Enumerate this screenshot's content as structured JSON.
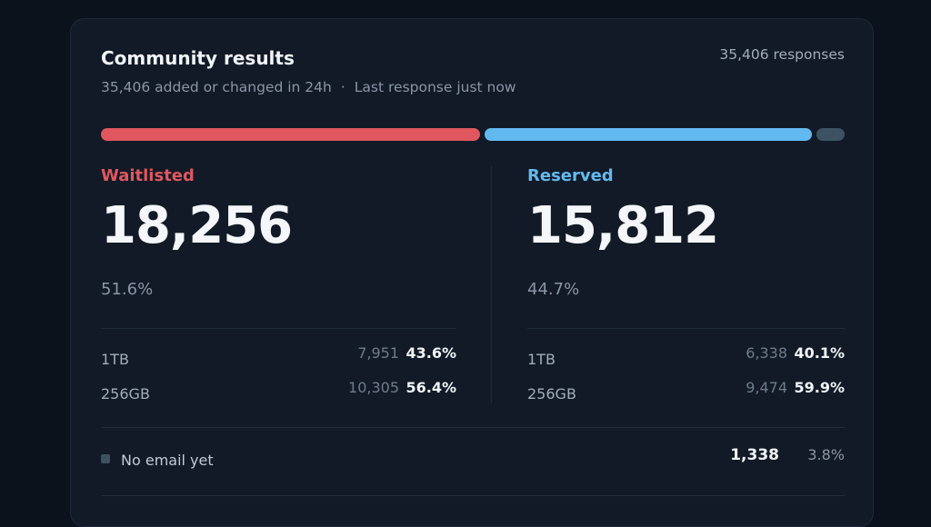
{
  "header": {
    "title": "Community results",
    "subtitle": [
      "35,406 added or changed in 24h",
      "Last response just now"
    ],
    "separator": "·",
    "total": "35,406 responses"
  },
  "groups": [
    {
      "label": "Waitlisted",
      "count": "18,256",
      "share": "51.6%",
      "color": "#e0575f",
      "rows": [
        {
          "name": "1TB",
          "count": "7,951",
          "share": "43.6%"
        },
        {
          "name": "256GB",
          "count": "10,305",
          "share": "56.4%"
        }
      ]
    },
    {
      "label": "Reserved",
      "count": "15,812",
      "share": "44.7%",
      "color": "#62b9f0",
      "rows": [
        {
          "name": "1TB",
          "count": "6,338",
          "share": "40.1%"
        },
        {
          "name": "256GB",
          "count": "9,474",
          "share": "59.9%"
        }
      ]
    }
  ],
  "other": {
    "label": "No email yet",
    "count": "1,338",
    "share": "3.8%",
    "color": "#3c5263"
  }
}
